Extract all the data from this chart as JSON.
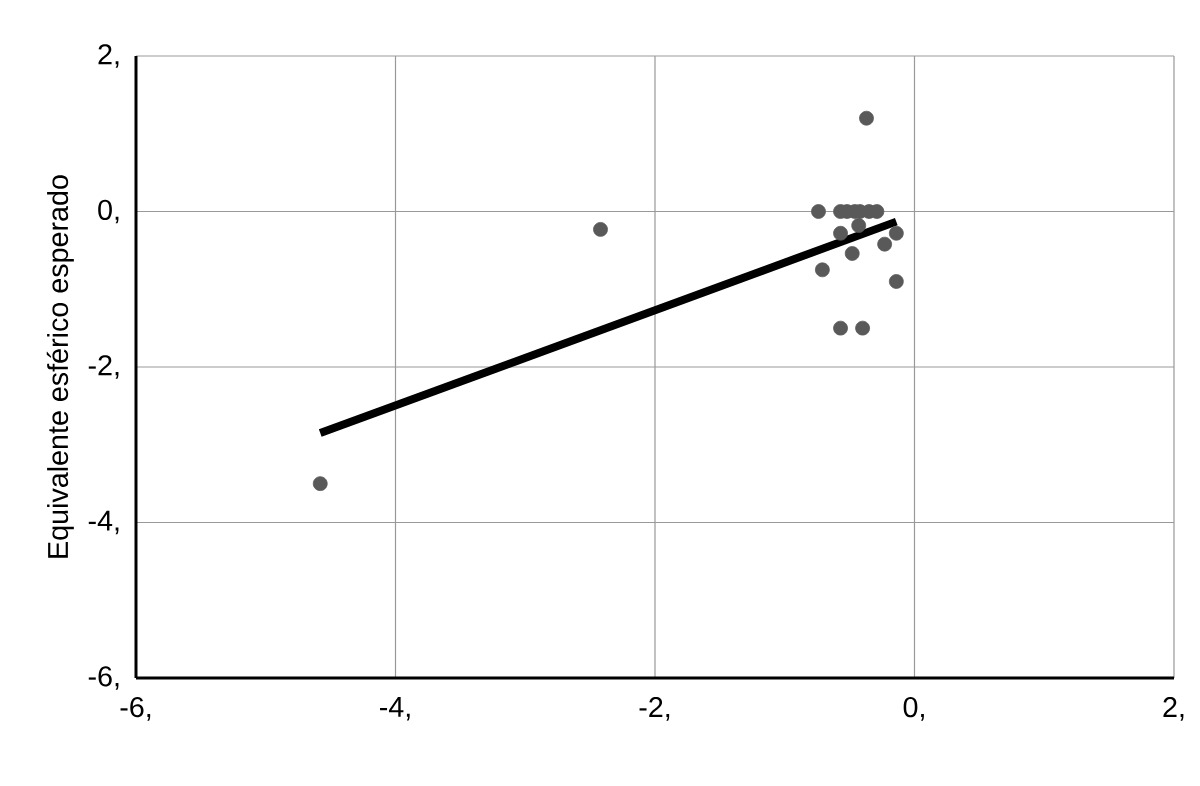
{
  "chart_data": {
    "type": "scatter",
    "ylabel": "Equivalente esférico esperado",
    "grid": true,
    "xlim": [
      -6,
      2
    ],
    "ylim": [
      -6,
      2
    ],
    "xticks": [
      {
        "value": -6,
        "label": "-6,"
      },
      {
        "value": -4,
        "label": "-4,"
      },
      {
        "value": -2,
        "label": "-2,"
      },
      {
        "value": 0,
        "label": "0,"
      },
      {
        "value": 2,
        "label": "2,"
      }
    ],
    "yticks": [
      {
        "value": -6,
        "label": "-6,"
      },
      {
        "value": -4,
        "label": "-4,"
      },
      {
        "value": -2,
        "label": "-2,"
      },
      {
        "value": 0,
        "label": "0,"
      },
      {
        "value": 2,
        "label": "2,"
      }
    ],
    "series": [
      {
        "marker": "circle",
        "color": "#595959",
        "x": [
          -0.74,
          -0.71,
          -2.42,
          -4.58,
          -0.37,
          -0.57,
          -0.52,
          -0.46,
          -0.42,
          -0.35,
          -0.29,
          -0.57,
          -0.48,
          -0.23,
          -0.14,
          -0.14,
          -0.57,
          -0.4,
          -0.43
        ],
        "values": [
          0,
          -0.75,
          -0.23,
          -3.5,
          1.2,
          0,
          0,
          0,
          0,
          0,
          0,
          -0.28,
          -0.54,
          -0.42,
          -0.28,
          -0.9,
          -1.5,
          -1.5,
          -0.18
        ]
      },
      {
        "type": "line",
        "marker": "none",
        "color": "#000000",
        "x": [
          -4.58,
          -0.14
        ],
        "values": [
          -2.85,
          -0.13
        ]
      }
    ]
  }
}
